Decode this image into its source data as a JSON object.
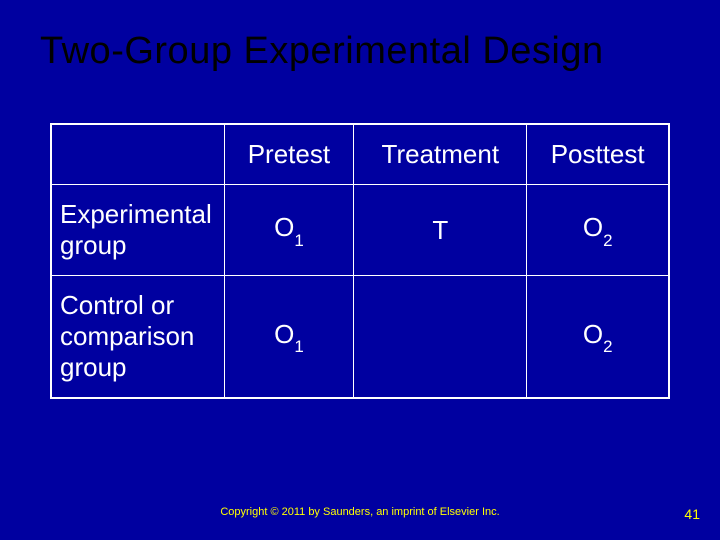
{
  "title": "Two-Group Experimental Design",
  "table": {
    "headers": {
      "empty": "",
      "pretest": "Pretest",
      "treatment": "Treatment",
      "posttest": "Posttest"
    },
    "rows": [
      {
        "label": "Experimental group",
        "pretest_base": "O",
        "pretest_sub": "1",
        "treatment": "T",
        "posttest_base": "O",
        "posttest_sub": "2"
      },
      {
        "label": "Control or comparison group",
        "pretest_base": "O",
        "pretest_sub": "1",
        "treatment": "",
        "posttest_base": "O",
        "posttest_sub": "2"
      }
    ]
  },
  "copyright": "Copyright © 2011 by Saunders, an imprint of Elsevier Inc.",
  "page_number": "41",
  "styling": {
    "background_color": "#0000a0",
    "title_color": "#000000",
    "title_fontsize": 38,
    "table_border_color": "#ffffff",
    "cell_text_color": "#ffffff",
    "cell_fontsize": 26,
    "footer_color": "#ffff00",
    "footer_fontsize": 11,
    "page_number_fontsize": 14,
    "column_widths": {
      "row_label": "28%",
      "pretest": "21%",
      "treatment": "28%",
      "posttest": "23%"
    }
  }
}
